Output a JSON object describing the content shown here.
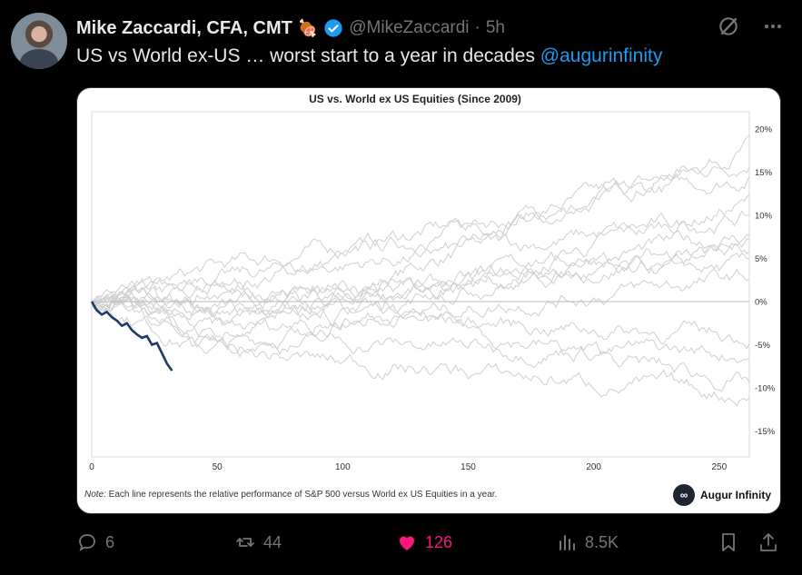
{
  "author": {
    "name": "Mike Zaccardi, CFA, CMT",
    "handle": "@MikeZaccardi",
    "time": "5h"
  },
  "tweet": {
    "text_prefix": "US vs World ex-US … worst start to a year in decades ",
    "mention": "@augurinfinity"
  },
  "card": {
    "note_label": "Note:",
    "note_text": " Each line represents the relative performance of S&P 500 versus World ex US Equities in a year.",
    "brand": "Augur Infinity"
  },
  "actions": {
    "replies": "6",
    "reposts": "44",
    "likes": "126",
    "views": "8.5K"
  },
  "colors": {
    "background": "#000000",
    "text": "#e7e9ea",
    "muted": "#71767b",
    "link": "#1d9bf0",
    "like": "#f91880",
    "current_year_line": "#1f3a68",
    "history_lines": "#cfcfcf"
  },
  "icons": [
    "verified-badge-icon",
    "grok-icon",
    "more-icon",
    "reply-icon",
    "repost-icon",
    "like-icon",
    "views-icon",
    "bookmark-icon",
    "share-icon"
  ],
  "chart_data": {
    "type": "line",
    "title": "US vs. World ex US Equities (Since 2009)",
    "xlabel": "",
    "ylabel": "",
    "xlim": [
      0,
      262
    ],
    "ylim": [
      -0.18,
      0.22
    ],
    "x_ticks": [
      "0",
      "50",
      "100",
      "150",
      "200",
      "250"
    ],
    "y_ticks": [
      "20%",
      "15%",
      "10%",
      "5%",
      "0%",
      "-5%",
      "-10%",
      "-15%"
    ],
    "grid": false,
    "historical_end_values": [
      0.19,
      0.17,
      0.15,
      0.12,
      0.1,
      0.08,
      0.07,
      0.06,
      0.04,
      0.03,
      -0.04,
      -0.06,
      -0.1,
      -0.11
    ],
    "series": [
      {
        "x": [
          0,
          2,
          4,
          6,
          8,
          10,
          12,
          14,
          16,
          18,
          20,
          22,
          24,
          26,
          28,
          30,
          32
        ],
        "y": [
          0.0,
          -0.01,
          -0.015,
          -0.012,
          -0.018,
          -0.022,
          -0.028,
          -0.025,
          -0.033,
          -0.038,
          -0.042,
          -0.04,
          -0.05,
          -0.048,
          -0.06,
          -0.072,
          -0.08
        ]
      }
    ]
  }
}
